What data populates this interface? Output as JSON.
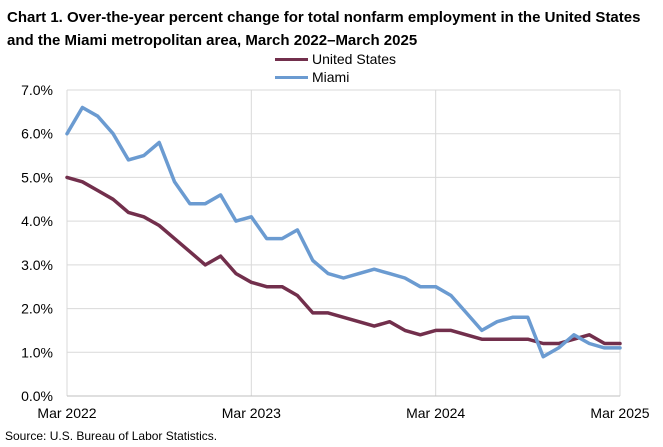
{
  "title": "Chart 1. Over-the-year percent change for total nonfarm employment in the United States and the Miami metropolitan area, March 2022–March 2025",
  "source": "Source: U.S. Bureau of Labor Statistics.",
  "chart_data": {
    "type": "line",
    "title": "Chart 1. Over-the-year percent change for total nonfarm employment in the United States and the Miami metropolitan area, March 2022–March 2025",
    "x": [
      "Mar 2022",
      "Apr 2022",
      "May 2022",
      "Jun 2022",
      "Jul 2022",
      "Aug 2022",
      "Sep 2022",
      "Oct 2022",
      "Nov 2022",
      "Dec 2022",
      "Jan 2023",
      "Feb 2023",
      "Mar 2023",
      "Apr 2023",
      "May 2023",
      "Jun 2023",
      "Jul 2023",
      "Aug 2023",
      "Sep 2023",
      "Oct 2023",
      "Nov 2023",
      "Dec 2023",
      "Jan 2024",
      "Feb 2024",
      "Mar 2024",
      "Apr 2024",
      "May 2024",
      "Jun 2024",
      "Jul 2024",
      "Aug 2024",
      "Sep 2024",
      "Oct 2024",
      "Nov 2024",
      "Dec 2024",
      "Jan 2025",
      "Feb 2025",
      "Mar 2025"
    ],
    "xticks": [
      "Mar 2022",
      "Mar 2023",
      "Mar 2024",
      "Mar 2025"
    ],
    "yticks": [
      "0.0%",
      "1.0%",
      "2.0%",
      "3.0%",
      "4.0%",
      "5.0%",
      "6.0%",
      "7.0%"
    ],
    "ylim": [
      0,
      7
    ],
    "grid": true,
    "legend": "top-center",
    "series": [
      {
        "name": "United States",
        "color": "#722F4C",
        "values": [
          5.0,
          4.9,
          4.7,
          4.5,
          4.2,
          4.1,
          3.9,
          3.6,
          3.3,
          3.0,
          3.2,
          2.8,
          2.6,
          2.5,
          2.5,
          2.3,
          1.9,
          1.9,
          1.8,
          1.7,
          1.6,
          1.7,
          1.5,
          1.4,
          1.5,
          1.5,
          1.4,
          1.3,
          1.3,
          1.3,
          1.3,
          1.2,
          1.2,
          1.3,
          1.4,
          1.2,
          1.2
        ]
      },
      {
        "name": "Miami",
        "color": "#6B9BD1",
        "values": [
          6.0,
          6.6,
          6.4,
          6.0,
          5.4,
          5.5,
          5.8,
          4.9,
          4.4,
          4.4,
          4.6,
          4.0,
          4.1,
          3.6,
          3.6,
          3.8,
          3.1,
          2.8,
          2.7,
          2.8,
          2.9,
          2.8,
          2.7,
          2.5,
          2.5,
          2.3,
          1.9,
          1.5,
          1.7,
          1.8,
          1.8,
          0.9,
          1.1,
          1.4,
          1.2,
          1.1,
          1.1
        ]
      }
    ]
  }
}
